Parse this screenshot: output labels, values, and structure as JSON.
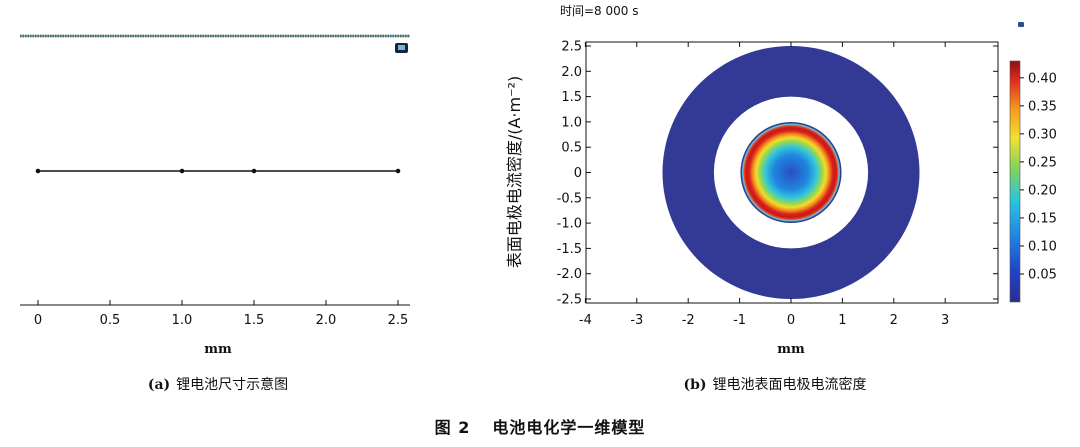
{
  "figure": {
    "label": "图 2",
    "title": "电池电化学一维模型"
  },
  "panel_a": {
    "label": "(a)",
    "caption": "锂电池尺寸示意图",
    "x_unit": "mm",
    "x_ticks": [
      "0",
      "0.5",
      "1.0",
      "1.5",
      "2.0",
      "2.5"
    ],
    "x_tick_values": [
      0,
      0.5,
      1.0,
      1.5,
      2.0,
      2.5
    ],
    "x_range": [
      -0.1,
      2.6
    ],
    "vertices": [
      0,
      1.0,
      1.5,
      2.5
    ]
  },
  "panel_b": {
    "label": "(b)",
    "caption": "锂电池表面电极电流密度",
    "time_label": "时间=8 000 s",
    "x_unit": "mm",
    "y_label": "表面电极电流密度/(A·m⁻²)",
    "x_ticks": [
      "-4",
      "-3",
      "-2",
      "-1",
      "0",
      "1",
      "2",
      "3"
    ],
    "x_tick_values": [
      -4,
      -3,
      -2,
      -1,
      0,
      1,
      2,
      3
    ],
    "y_ticks": [
      "2.5",
      "2.0",
      "1.5",
      "1.0",
      "0.5",
      "0",
      "-0.5",
      "-1.0",
      "-1.5",
      "-2.0",
      "-2.5"
    ],
    "y_tick_values": [
      2.5,
      2.0,
      1.5,
      1.0,
      0.5,
      0,
      -0.5,
      -1.0,
      -1.5,
      -2.0,
      -2.5
    ],
    "x_range": [
      -4,
      4
    ],
    "y_range": [
      -2.6,
      2.6
    ],
    "colorbar_ticks": [
      "0.40",
      "0.35",
      "0.30",
      "0.25",
      "0.20",
      "0.15",
      "0.10",
      "0.05"
    ],
    "colorbar_values": [
      0.4,
      0.35,
      0.3,
      0.25,
      0.2,
      0.15,
      0.1,
      0.05
    ],
    "colorbar_range": [
      0.0,
      0.43
    ],
    "inner_disk_radius_mm": 1.0,
    "outer_ring_inner_radius_mm": 1.5,
    "outer_ring_outer_radius_mm": 2.5,
    "ring_color": "#333a96"
  }
}
